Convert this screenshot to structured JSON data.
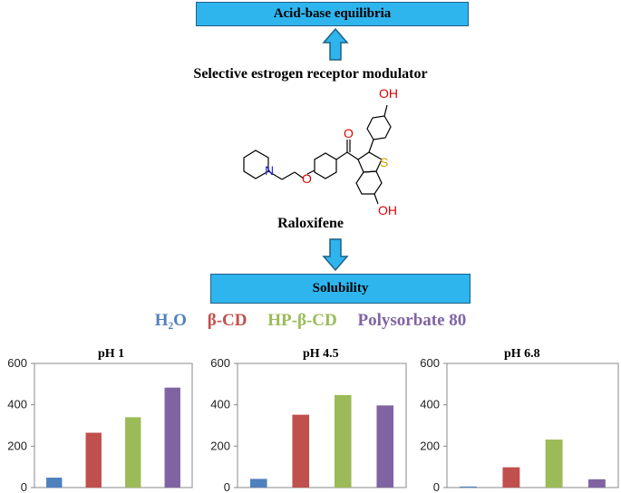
{
  "top_box": {
    "label": "Acid-base equilibria"
  },
  "subtitle": "Selective estrogen receptor modulator",
  "compound_name": "Raloxifene",
  "molecule_atoms": {
    "oh_top": "OH",
    "oh_bottom": "OH",
    "sulfur": "S",
    "nitrogen": "N",
    "oxygen_ether": "O",
    "oxygen_carbonyl": "O"
  },
  "bottom_box": {
    "label": "Solubility"
  },
  "legend": [
    {
      "label": "H₂O",
      "color": "#4f81bd"
    },
    {
      "label": "β-CD",
      "color": "#c0504d"
    },
    {
      "label": "HP-β-CD",
      "color": "#9bbb59"
    },
    {
      "label": "Polysorbate 80",
      "color": "#8064a2"
    }
  ],
  "chart_data": [
    {
      "type": "bar",
      "title": "pH 1",
      "categories": [
        "H₂O",
        "β-CD",
        "HP-β-CD",
        "Polysorbate 80"
      ],
      "values": [
        48,
        265,
        340,
        483
      ],
      "ylim": [
        0,
        600
      ],
      "yticks": [
        "0",
        "200",
        "400",
        "600"
      ]
    },
    {
      "type": "bar",
      "title": "pH 4.5",
      "categories": [
        "H₂O",
        "β-CD",
        "HP-β-CD",
        "Polysorbate 80"
      ],
      "values": [
        42,
        352,
        447,
        397
      ],
      "ylim": [
        0,
        600
      ],
      "yticks": [
        "0",
        "200",
        "400",
        "600"
      ]
    },
    {
      "type": "bar",
      "title": "pH 6.8",
      "categories": [
        "H₂O",
        "β-CD",
        "HP-β-CD",
        "Polysorbate 80"
      ],
      "values": [
        5,
        98,
        232,
        40
      ],
      "ylim": [
        0,
        600
      ],
      "yticks": [
        "0",
        "200",
        "400",
        "600"
      ]
    }
  ]
}
